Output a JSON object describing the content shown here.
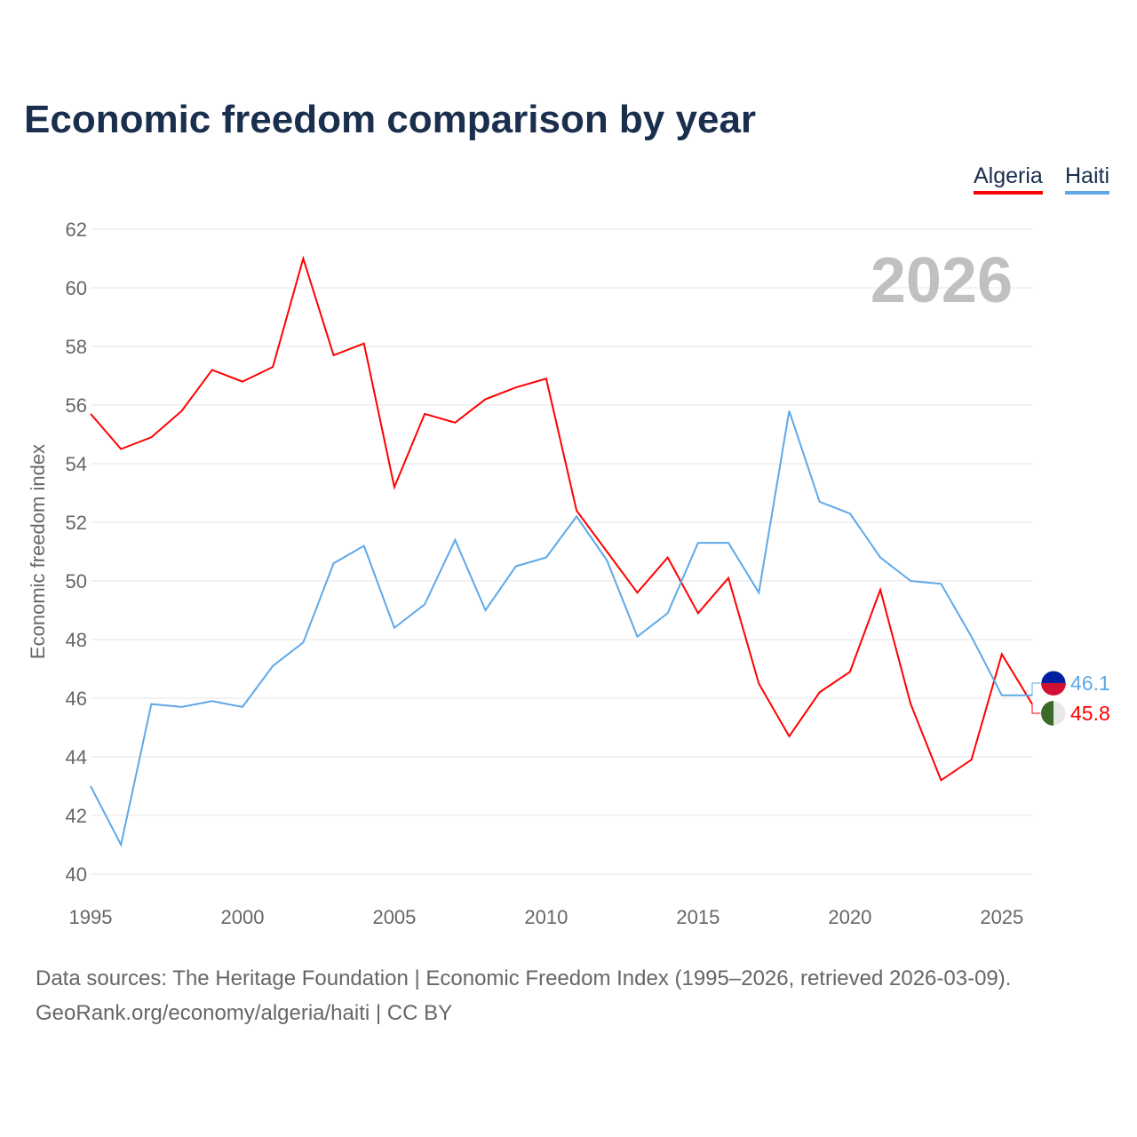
{
  "title": "Economic freedom comparison by year",
  "footer": {
    "line1": "Data sources: The Heritage Foundation | Economic Freedom Index (1995–2026, retrieved 2026-03-09).",
    "line2": "GeoRank.org/economy/algeria/haiti | CC BY"
  },
  "chart_data": {
    "type": "line",
    "title": "Economic freedom comparison by year",
    "xlabel": "",
    "ylabel": "Economic freedom index",
    "xlim": [
      1995,
      2026
    ],
    "ylim": [
      40,
      62
    ],
    "xticks": [
      1995,
      2000,
      2005,
      2010,
      2015,
      2020,
      2025
    ],
    "yticks": [
      40,
      42,
      44,
      46,
      48,
      50,
      52,
      54,
      56,
      58,
      60,
      62
    ],
    "grid": true,
    "legend_position": "top-right",
    "year_watermark": "2026",
    "x": [
      1995,
      1996,
      1997,
      1998,
      1999,
      2000,
      2001,
      2002,
      2003,
      2004,
      2005,
      2006,
      2007,
      2008,
      2009,
      2010,
      2011,
      2012,
      2013,
      2014,
      2015,
      2016,
      2017,
      2018,
      2019,
      2020,
      2021,
      2022,
      2023,
      2024,
      2025,
      2026
    ],
    "series": [
      {
        "name": "Algeria",
        "color": "#ff0000",
        "end_label": "45.8",
        "values": [
          55.7,
          54.5,
          54.9,
          55.8,
          57.2,
          56.8,
          57.3,
          61.0,
          57.7,
          58.1,
          53.2,
          55.7,
          55.4,
          56.2,
          56.6,
          56.9,
          52.4,
          51.0,
          49.6,
          50.8,
          48.9,
          50.1,
          46.5,
          44.7,
          46.2,
          46.9,
          49.7,
          45.8,
          43.2,
          43.9,
          47.5,
          45.8
        ]
      },
      {
        "name": "Haiti",
        "color": "#5ea8e8",
        "end_label": "46.1",
        "values": [
          43.0,
          41.0,
          45.8,
          45.7,
          45.9,
          45.7,
          47.1,
          47.9,
          50.6,
          51.2,
          48.4,
          49.2,
          51.4,
          49.0,
          50.5,
          50.8,
          52.2,
          50.7,
          48.1,
          48.9,
          51.3,
          51.3,
          49.6,
          55.8,
          52.7,
          52.3,
          50.8,
          50.0,
          49.9,
          48.1,
          46.1,
          46.1
        ]
      }
    ]
  }
}
